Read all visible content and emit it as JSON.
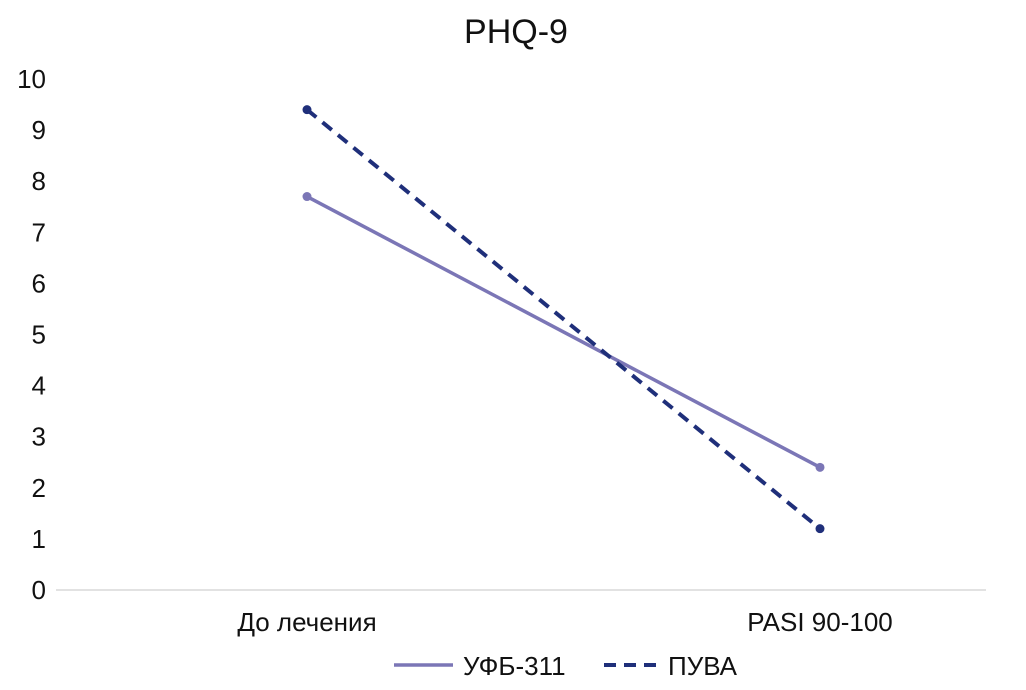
{
  "chart_data": {
    "type": "line",
    "title": "PHQ-9",
    "xlabel": "",
    "ylabel": "",
    "categories": [
      "До лечения",
      "PASI 90-100"
    ],
    "ylim": [
      0,
      10
    ],
    "yticks": [
      "0",
      "1",
      "2",
      "3",
      "4",
      "5",
      "6",
      "7",
      "8",
      "9",
      "10"
    ],
    "grid": false,
    "legend_position": "bottom",
    "series": [
      {
        "name": "УФБ-311",
        "values": [
          7.7,
          2.4
        ],
        "color": "#7b76b6",
        "line_style": "solid"
      },
      {
        "name": "ПУВА",
        "values": [
          9.4,
          1.2
        ],
        "color": "#1f2f7a",
        "line_style": "dashed"
      }
    ]
  }
}
